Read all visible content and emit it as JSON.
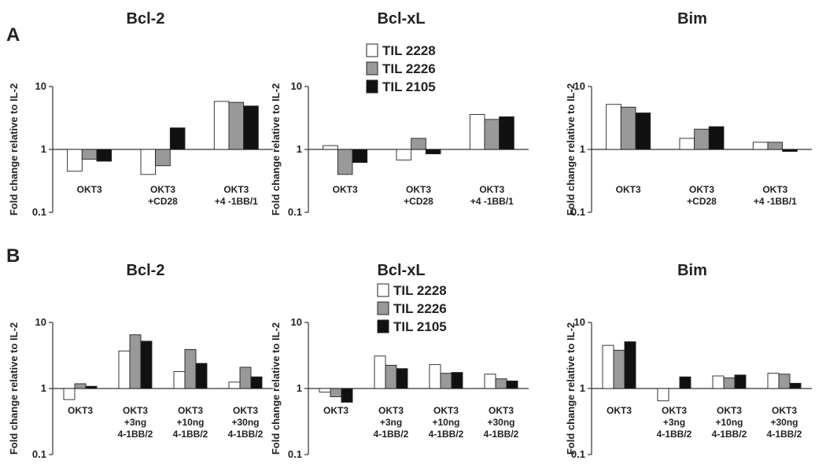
{
  "panel_labels": [
    "A",
    "B"
  ],
  "colors": {
    "TIL 2228": "#ffffff",
    "TIL 2226": "#999999",
    "TIL 2105": "#111111",
    "axis": "#333333"
  },
  "chart_data": [
    {
      "type": "bar",
      "panel": "A",
      "title": "Bcl-2",
      "ylabel": "Fold change relative to IL-2",
      "yscale": "log",
      "ylim": [
        0.1,
        10
      ],
      "yticks": [
        "0.1",
        "1",
        "10"
      ],
      "categories": [
        "OKT3",
        "OKT3 +CD28",
        "OKT3 +4 -1BB/1"
      ],
      "category_lines": [
        [
          "OKT3"
        ],
        [
          "OKT3",
          "+CD28"
        ],
        [
          "OKT3",
          "+4 -1BB/1"
        ]
      ],
      "series": [
        {
          "name": "TIL 2228",
          "values": [
            0.45,
            0.4,
            5.8
          ]
        },
        {
          "name": "TIL 2226",
          "values": [
            0.7,
            0.55,
            5.6
          ]
        },
        {
          "name": "TIL 2105",
          "values": [
            0.65,
            2.2,
            4.9
          ]
        }
      ]
    },
    {
      "type": "bar",
      "panel": "A",
      "title": "Bcl-xL",
      "ylabel": "Fold change relative to IL-2",
      "yscale": "log",
      "ylim": [
        0.1,
        10
      ],
      "yticks": [
        "0.1",
        "1",
        "10"
      ],
      "categories": [
        "OKT3",
        "OKT3 +CD28",
        "OKT3 +4 -1BB/1"
      ],
      "category_lines": [
        [
          "OKT3"
        ],
        [
          "OKT3",
          "+CD28"
        ],
        [
          "OKT3",
          "+4 -1BB/1"
        ]
      ],
      "series": [
        {
          "name": "TIL 2228",
          "values": [
            1.15,
            0.68,
            3.6
          ]
        },
        {
          "name": "TIL 2226",
          "values": [
            0.4,
            1.5,
            3.0
          ]
        },
        {
          "name": "TIL 2105",
          "values": [
            0.62,
            0.85,
            3.3
          ]
        }
      ],
      "legend": [
        "TIL 2228",
        "TIL 2226",
        "TIL 2105"
      ]
    },
    {
      "type": "bar",
      "panel": "A",
      "title": "Bim",
      "ylabel": "Fold change relative to IL-2",
      "yscale": "log",
      "ylim": [
        0.1,
        10
      ],
      "yticks": [
        "0.1",
        "1",
        "10"
      ],
      "categories": [
        "OKT3",
        "OKT3 +CD28",
        "OKT3 +4 -1BB/1"
      ],
      "category_lines": [
        [
          "OKT3"
        ],
        [
          "OKT3",
          "+CD28"
        ],
        [
          "OKT3",
          "+4 -1BB/1"
        ]
      ],
      "series": [
        {
          "name": "TIL 2228",
          "values": [
            5.2,
            1.5,
            1.3
          ]
        },
        {
          "name": "TIL 2226",
          "values": [
            4.7,
            2.1,
            1.3
          ]
        },
        {
          "name": "TIL 2105",
          "values": [
            3.8,
            2.3,
            0.93
          ]
        }
      ]
    },
    {
      "type": "bar",
      "panel": "B",
      "title": "Bcl-2",
      "ylabel": "Fold change relative to IL-2",
      "yscale": "log",
      "ylim": [
        0.1,
        10
      ],
      "yticks": [
        "0.1",
        "1",
        "10"
      ],
      "categories": [
        "OKT3",
        "OKT3 +3ng 4-1BB/2",
        "OKT3 +10ng 4-1BB/2",
        "OKT3 +30ng 4-1BB/2"
      ],
      "category_lines": [
        [
          "OKT3"
        ],
        [
          "OKT3",
          "+3ng",
          "4-1BB/2"
        ],
        [
          "OKT3",
          "+10ng",
          "4-1BB/2"
        ],
        [
          "OKT3",
          "+30ng",
          "4-1BB/2"
        ]
      ],
      "series": [
        {
          "name": "TIL 2228",
          "values": [
            0.68,
            3.7,
            1.8,
            1.25
          ]
        },
        {
          "name": "TIL 2226",
          "values": [
            1.18,
            6.5,
            3.9,
            2.1
          ]
        },
        {
          "name": "TIL 2105",
          "values": [
            1.08,
            5.2,
            2.4,
            1.5
          ]
        }
      ]
    },
    {
      "type": "bar",
      "panel": "B",
      "title": "Bcl-xL",
      "ylabel": "Fold change relative to IL-2",
      "yscale": "log",
      "ylim": [
        0.1,
        10
      ],
      "yticks": [
        "0.1",
        "1",
        "10"
      ],
      "categories": [
        "OKT3",
        "OKT3 +3ng 4-1BB/2",
        "OKT3 +10ng 4-1BB/2",
        "OKT3 +30ng 4-1BB/2"
      ],
      "category_lines": [
        [
          "OKT3"
        ],
        [
          "OKT3",
          "+3ng",
          "4-1BB/2"
        ],
        [
          "OKT3",
          "+10ng",
          "4-1BB/2"
        ],
        [
          "OKT3",
          "+30ng",
          "4-1BB/2"
        ]
      ],
      "series": [
        {
          "name": "TIL 2228",
          "values": [
            0.88,
            3.1,
            2.3,
            1.65
          ]
        },
        {
          "name": "TIL 2226",
          "values": [
            0.75,
            2.25,
            1.7,
            1.4
          ]
        },
        {
          "name": "TIL 2105",
          "values": [
            0.62,
            2.0,
            1.75,
            1.3
          ]
        }
      ],
      "legend": [
        "TIL 2228",
        "TIL 2226",
        "TIL 2105"
      ]
    },
    {
      "type": "bar",
      "panel": "B",
      "title": "Bim",
      "ylabel": "Fold change relative to IL-2",
      "yscale": "log",
      "ylim": [
        0.1,
        10
      ],
      "yticks": [
        "0.1",
        "1",
        "10"
      ],
      "categories": [
        "OKT3",
        "OKT3 +3ng 4-1BB/2",
        "OKT3 +10ng 4-1BB/2",
        "OKT3 +30ng 4-1BB/2"
      ],
      "category_lines": [
        [
          "OKT3"
        ],
        [
          "OKT3",
          "+3ng",
          "4-1BB/2"
        ],
        [
          "OKT3",
          "+10ng",
          "4-1BB/2"
        ],
        [
          "OKT3",
          "+30ng",
          "4-1BB/2"
        ]
      ],
      "series": [
        {
          "name": "TIL 2228",
          "values": [
            4.5,
            0.65,
            1.55,
            1.7
          ]
        },
        {
          "name": "TIL 2226",
          "values": [
            3.8,
            1.0,
            1.45,
            1.65
          ]
        },
        {
          "name": "TIL 2105",
          "values": [
            5.1,
            1.5,
            1.6,
            1.2
          ]
        }
      ]
    }
  ]
}
